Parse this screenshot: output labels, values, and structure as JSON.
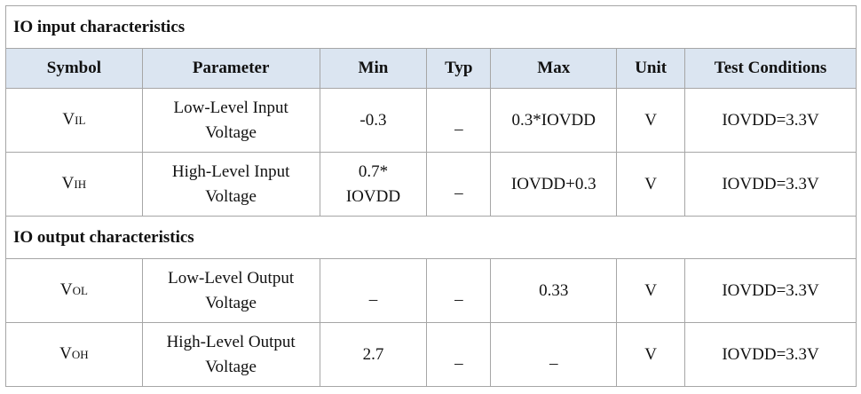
{
  "table": {
    "columns": [
      "Symbol",
      "Parameter",
      "Min",
      "Typ",
      "Max",
      "Unit",
      "Test Conditions"
    ],
    "sections": [
      {
        "title": "IO input characteristics",
        "rows": [
          {
            "symbol": {
              "main": "V",
              "sub": "IL"
            },
            "cells": [
              "Low-Level Input Voltage",
              "-0.3",
              "–",
              "0.3*IOVDD",
              "V",
              "IOVDD=3.3V"
            ]
          },
          {
            "symbol": {
              "main": "V",
              "sub": "IH"
            },
            "cells": [
              "High-Level Input Voltage",
              "0.7*\nIOVDD",
              "–",
              "IOVDD+0.3",
              "V",
              "IOVDD=3.3V"
            ]
          }
        ]
      },
      {
        "title": "IO output characteristics",
        "rows": [
          {
            "symbol": {
              "main": "V",
              "sub": "OL"
            },
            "cells": [
              "Low-Level Output Voltage",
              "–",
              "–",
              "0.33",
              "V",
              "IOVDD=3.3V"
            ]
          },
          {
            "symbol": {
              "main": "V",
              "sub": "OH"
            },
            "cells": [
              "High-Level Output Voltage",
              "2.7",
              "–",
              "–",
              "V",
              "IOVDD=3.3V"
            ]
          }
        ]
      }
    ]
  }
}
